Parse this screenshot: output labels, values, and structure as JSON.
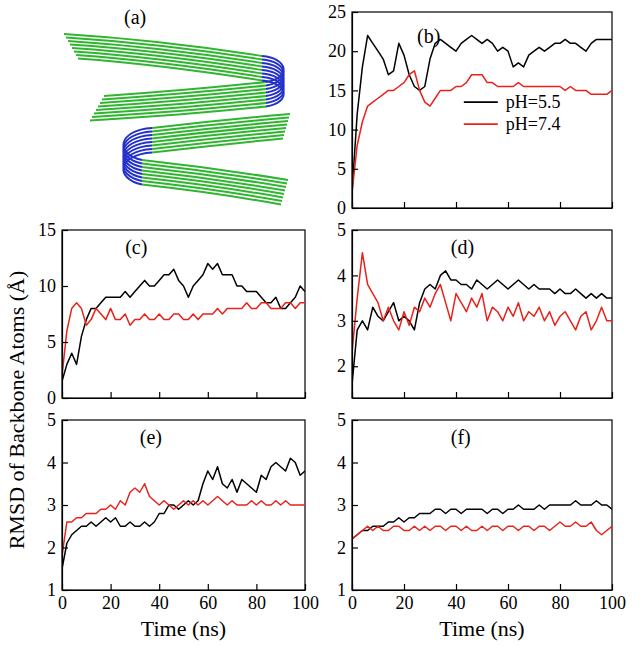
{
  "figure": {
    "panel_label": "(a)",
    "ylabel": "RMSD of Backbone Atoms (Å)"
  },
  "chart_data": [
    {
      "type": "line",
      "title": "(b)",
      "legend": "right",
      "tick_labels": "y",
      "x": [
        0,
        2,
        4,
        6,
        8,
        10,
        12,
        14,
        16,
        18,
        20,
        22,
        24,
        26,
        28,
        30,
        32,
        34,
        36,
        38,
        40,
        42,
        44,
        46,
        48,
        50,
        52,
        54,
        56,
        58,
        60,
        62,
        64,
        66,
        68,
        70,
        72,
        74,
        76,
        78,
        80,
        82,
        84,
        86,
        88,
        90,
        92,
        94,
        96,
        98,
        100
      ],
      "xlim": [
        0,
        100
      ],
      "xticks": [
        0,
        20,
        40,
        60,
        80,
        100
      ],
      "ylim": [
        0,
        25
      ],
      "yticks": [
        0,
        5,
        10,
        15,
        20,
        25
      ],
      "series": [
        {
          "name": "pH=5.5",
          "color": "#000000",
          "values": [
            2,
            12,
            18,
            22,
            21,
            20,
            19,
            17,
            17.5,
            21,
            19.5,
            17,
            15.5,
            15,
            15.5,
            19,
            21,
            21.5,
            21,
            20.5,
            20,
            21,
            21.5,
            22,
            21.5,
            21,
            21.5,
            21,
            20,
            20.5,
            20,
            18,
            18.5,
            18,
            19.5,
            20,
            20.5,
            20,
            20.5,
            21,
            21,
            21.5,
            21,
            21,
            20.5,
            20,
            21,
            21.5,
            21.5,
            21.5,
            21.5
          ]
        },
        {
          "name": "pH=7.4",
          "color": "#e8221b",
          "values": [
            2,
            8,
            11,
            13,
            13.5,
            14,
            14.5,
            15,
            15,
            15.5,
            16,
            17,
            17.5,
            15,
            13.5,
            13,
            14,
            15,
            15,
            15,
            15.5,
            15.5,
            16,
            17,
            17,
            17,
            16,
            16,
            15.5,
            15.5,
            15.5,
            15.5,
            16,
            15.5,
            15.5,
            15.5,
            15.5,
            15.5,
            15.5,
            15.5,
            15.5,
            15,
            15.5,
            15,
            15,
            15,
            14.5,
            14.5,
            14.5,
            14.5,
            15
          ]
        }
      ]
    },
    {
      "type": "line",
      "title": "(c)",
      "tick_labels": "y",
      "x": [
        0,
        2,
        4,
        6,
        8,
        10,
        12,
        14,
        16,
        18,
        20,
        22,
        24,
        26,
        28,
        30,
        32,
        34,
        36,
        38,
        40,
        42,
        44,
        46,
        48,
        50,
        52,
        54,
        56,
        58,
        60,
        62,
        64,
        66,
        68,
        70,
        72,
        74,
        76,
        78,
        80,
        82,
        84,
        86,
        88,
        90,
        92,
        94,
        96,
        98,
        100
      ],
      "xlim": [
        0,
        100
      ],
      "xticks": [
        0,
        20,
        40,
        60,
        80,
        100
      ],
      "ylim": [
        0,
        15
      ],
      "yticks": [
        0,
        5,
        10,
        15
      ],
      "series": [
        {
          "name": "pH=5.5",
          "color": "#000000",
          "values": [
            1.5,
            3,
            4,
            3,
            5.5,
            7,
            8,
            8,
            8.5,
            9,
            9,
            9,
            9,
            9.5,
            9,
            9.5,
            10,
            10.5,
            10,
            10,
            10.5,
            11,
            11,
            11.5,
            10.5,
            10,
            9,
            10,
            10.5,
            11,
            12,
            11.5,
            12,
            11,
            11,
            11,
            10,
            10,
            9.5,
            9.5,
            9.5,
            9,
            8.5,
            8.5,
            9,
            8,
            8,
            8.5,
            9,
            10,
            9.5
          ]
        },
        {
          "name": "pH=7.4",
          "color": "#e8221b",
          "values": [
            2,
            6,
            8,
            8.5,
            8,
            6.5,
            7,
            8,
            7.5,
            7,
            8,
            7,
            7,
            7.5,
            6.5,
            7,
            7,
            7.5,
            7,
            7,
            7.5,
            7,
            7,
            7.5,
            7.5,
            7,
            7,
            7.5,
            7,
            7.5,
            7.5,
            7.5,
            8,
            7.5,
            8,
            8,
            8,
            8,
            8.5,
            8,
            8,
            8.5,
            8.5,
            8,
            8,
            8,
            8.5,
            8.5,
            8,
            8.5,
            8.5
          ]
        }
      ]
    },
    {
      "type": "line",
      "title": "(d)",
      "tick_labels": "y",
      "x": [
        0,
        2,
        4,
        6,
        8,
        10,
        12,
        14,
        16,
        18,
        20,
        22,
        24,
        26,
        28,
        30,
        32,
        34,
        36,
        38,
        40,
        42,
        44,
        46,
        48,
        50,
        52,
        54,
        56,
        58,
        60,
        62,
        64,
        66,
        68,
        70,
        72,
        74,
        76,
        78,
        80,
        82,
        84,
        86,
        88,
        90,
        92,
        94,
        96,
        98,
        100
      ],
      "xlim": [
        0,
        100
      ],
      "xticks": [
        0,
        20,
        40,
        60,
        80,
        100
      ],
      "ylim": [
        1.3,
        5
      ],
      "yticks": [
        2,
        3,
        4,
        5
      ],
      "series": [
        {
          "name": "pH=5.5",
          "color": "#000000",
          "values": [
            1.6,
            2.8,
            3,
            2.8,
            3.3,
            3.1,
            3,
            3.2,
            3.4,
            3,
            3.1,
            3,
            2.8,
            3.4,
            3.7,
            3.8,
            3.7,
            4,
            4.1,
            3.9,
            3.9,
            3.8,
            3.8,
            3.7,
            3.9,
            3.8,
            3.7,
            3.8,
            3.9,
            3.8,
            3.7,
            3.8,
            3.9,
            3.8,
            3.7,
            3.8,
            3.7,
            3.7,
            3.7,
            3.6,
            3.7,
            3.6,
            3.6,
            3.7,
            3.6,
            3.5,
            3.6,
            3.5,
            3.6,
            3.5,
            3.5
          ]
        },
        {
          "name": "pH=7.4",
          "color": "#e8221b",
          "values": [
            2.3,
            3.5,
            4.5,
            3.8,
            3.6,
            3.4,
            3,
            3.3,
            3,
            2.8,
            3.2,
            2.9,
            3.3,
            3.2,
            3.5,
            3.3,
            3.6,
            3.8,
            3.4,
            3,
            3.6,
            3.4,
            3.2,
            3.5,
            3.3,
            3.6,
            3,
            3.3,
            3.2,
            3,
            3.3,
            3.1,
            3.4,
            3,
            3.2,
            3.1,
            3.3,
            3,
            3.2,
            2.9,
            3.1,
            3.2,
            3,
            2.8,
            3.1,
            3.2,
            2.8,
            3,
            3.3,
            3,
            3
          ]
        }
      ]
    },
    {
      "type": "line",
      "title": "(e)",
      "xlabel": "Time (ns)",
      "x": [
        0,
        2,
        4,
        6,
        8,
        10,
        12,
        14,
        16,
        18,
        20,
        22,
        24,
        26,
        28,
        30,
        32,
        34,
        36,
        38,
        40,
        42,
        44,
        46,
        48,
        50,
        52,
        54,
        56,
        58,
        60,
        62,
        64,
        66,
        68,
        70,
        72,
        74,
        76,
        78,
        80,
        82,
        84,
        86,
        88,
        90,
        92,
        94,
        96,
        98,
        100
      ],
      "xlim": [
        0,
        100
      ],
      "xticks": [
        0,
        20,
        40,
        60,
        80,
        100
      ],
      "ylim": [
        1,
        5
      ],
      "yticks": [
        1,
        2,
        3,
        4,
        5
      ],
      "series": [
        {
          "name": "pH=5.5",
          "color": "#000000",
          "values": [
            1.5,
            2.1,
            2.3,
            2.4,
            2.5,
            2.5,
            2.6,
            2.5,
            2.6,
            2.7,
            2.6,
            2.7,
            2.5,
            2.5,
            2.6,
            2.5,
            2.5,
            2.6,
            2.5,
            2.6,
            2.8,
            2.8,
            3,
            3,
            2.9,
            3,
            3.1,
            3,
            3.1,
            3.5,
            3.8,
            3.6,
            3.9,
            3.5,
            3.4,
            3.6,
            3.3,
            3.6,
            3.5,
            3.4,
            3.3,
            3.7,
            3.6,
            3.9,
            4,
            3.9,
            3.8,
            4.1,
            4,
            3.7,
            3.8
          ]
        },
        {
          "name": "pH=7.4",
          "color": "#e8221b",
          "values": [
            1.8,
            2.6,
            2.6,
            2.7,
            2.7,
            2.8,
            2.8,
            2.8,
            2.9,
            2.9,
            3,
            2.9,
            3.1,
            3,
            3.3,
            3.4,
            3.3,
            3.5,
            3.2,
            3.1,
            3,
            3.1,
            3,
            2.9,
            3,
            3.1,
            3,
            3.1,
            3,
            3.1,
            3,
            3.1,
            3.2,
            3.1,
            3,
            3.1,
            3,
            3,
            3,
            3.1,
            3,
            3.1,
            3,
            3,
            3.1,
            3,
            3.1,
            3,
            3,
            3,
            3
          ]
        }
      ]
    },
    {
      "type": "line",
      "title": "(f)",
      "xlabel": "Time (ns)",
      "x": [
        0,
        2,
        4,
        6,
        8,
        10,
        12,
        14,
        16,
        18,
        20,
        22,
        24,
        26,
        28,
        30,
        32,
        34,
        36,
        38,
        40,
        42,
        44,
        46,
        48,
        50,
        52,
        54,
        56,
        58,
        60,
        62,
        64,
        66,
        68,
        70,
        72,
        74,
        76,
        78,
        80,
        82,
        84,
        86,
        88,
        90,
        92,
        94,
        96,
        98,
        100
      ],
      "xlim": [
        0,
        100
      ],
      "xticks": [
        0,
        20,
        40,
        60,
        80,
        100
      ],
      "ylim": [
        1,
        5
      ],
      "yticks": [
        1,
        2,
        3,
        4,
        5
      ],
      "series": [
        {
          "name": "pH=5.5",
          "color": "#000000",
          "values": [
            2.2,
            2.3,
            2.4,
            2.4,
            2.5,
            2.5,
            2.5,
            2.6,
            2.6,
            2.7,
            2.6,
            2.7,
            2.7,
            2.8,
            2.8,
            2.8,
            2.9,
            2.9,
            2.8,
            2.9,
            2.9,
            2.8,
            2.9,
            2.9,
            2.9,
            2.9,
            2.8,
            2.9,
            2.9,
            2.8,
            2.9,
            2.9,
            3,
            2.9,
            2.9,
            2.9,
            3,
            2.9,
            3,
            3,
            3,
            3,
            3,
            3.1,
            3,
            3,
            3,
            3.1,
            3,
            3,
            2.9
          ]
        },
        {
          "name": "pH=7.4",
          "color": "#e8221b",
          "values": [
            2.2,
            2.3,
            2.4,
            2.5,
            2.4,
            2.5,
            2.4,
            2.4,
            2.5,
            2.5,
            2.4,
            2.4,
            2.5,
            2.4,
            2.5,
            2.4,
            2.5,
            2.5,
            2.4,
            2.5,
            2.5,
            2.4,
            2.5,
            2.4,
            2.4,
            2.5,
            2.4,
            2.5,
            2.5,
            2.4,
            2.5,
            2.5,
            2.4,
            2.5,
            2.5,
            2.4,
            2.5,
            2.5,
            2.4,
            2.5,
            2.6,
            2.5,
            2.5,
            2.6,
            2.5,
            2.5,
            2.6,
            2.4,
            2.3,
            2.4,
            2.5
          ]
        }
      ]
    }
  ]
}
